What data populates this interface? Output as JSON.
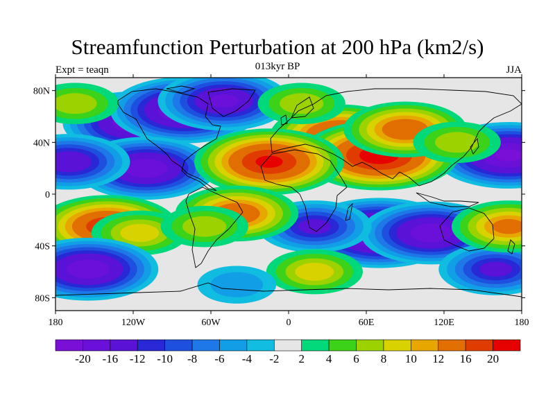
{
  "header": {
    "title": "Streamfunction Perturbation at 200 hPa (km2/s)",
    "subtitle": "013kyr BP",
    "left_string": "Expt = teaqn",
    "right_string": "JJA"
  },
  "map": {
    "projection": "cylindrical-equidistant",
    "lon_range": [
      -180,
      180
    ],
    "lat_range": [
      -90,
      90
    ],
    "x_ticks": [
      {
        "lon": -180,
        "label": "180"
      },
      {
        "lon": -120,
        "label": "120W"
      },
      {
        "lon": -60,
        "label": "60W"
      },
      {
        "lon": 0,
        "label": "0"
      },
      {
        "lon": 60,
        "label": "60E"
      },
      {
        "lon": 120,
        "label": "120E"
      },
      {
        "lon": 180,
        "label": "180"
      }
    ],
    "y_ticks": [
      {
        "lat": 80,
        "label": "80N"
      },
      {
        "lat": 40,
        "label": "40N"
      },
      {
        "lat": 0,
        "label": "0"
      },
      {
        "lat": -40,
        "label": "40S"
      },
      {
        "lat": -80,
        "label": "80S"
      }
    ],
    "background_color": "#e6e6e6",
    "anomalies": [
      {
        "lon": -120,
        "lat": 55,
        "value": -18
      },
      {
        "lon": -80,
        "lat": 65,
        "value": -20
      },
      {
        "lon": -50,
        "lat": 72,
        "value": -16
      },
      {
        "lon": -110,
        "lat": 20,
        "value": -18
      },
      {
        "lon": -170,
        "lat": 25,
        "value": -14
      },
      {
        "lon": -165,
        "lat": 70,
        "value": 6
      },
      {
        "lon": 170,
        "lat": 30,
        "value": -20
      },
      {
        "lon": 40,
        "lat": 45,
        "value": 18
      },
      {
        "lon": 70,
        "lat": 30,
        "value": 22
      },
      {
        "lon": 90,
        "lat": 50,
        "value": 14
      },
      {
        "lon": -15,
        "lat": 25,
        "value": 20
      },
      {
        "lon": 10,
        "lat": 70,
        "value": 6
      },
      {
        "lon": 130,
        "lat": 40,
        "value": 6
      },
      {
        "lon": 70,
        "lat": -30,
        "value": -22
      },
      {
        "lon": 110,
        "lat": -30,
        "value": -18
      },
      {
        "lon": 20,
        "lat": -25,
        "value": -12
      },
      {
        "lon": -140,
        "lat": -25,
        "value": 18
      },
      {
        "lon": -115,
        "lat": -30,
        "value": 8
      },
      {
        "lon": -40,
        "lat": -15,
        "value": 14
      },
      {
        "lon": -65,
        "lat": -25,
        "value": 6
      },
      {
        "lon": -155,
        "lat": -58,
        "value": -18
      },
      {
        "lon": 160,
        "lat": -58,
        "value": -12
      },
      {
        "lon": 170,
        "lat": -25,
        "value": 12
      },
      {
        "lon": 20,
        "lat": -60,
        "value": 8
      },
      {
        "lon": -40,
        "lat": -70,
        "value": -4
      }
    ]
  },
  "colorbar": {
    "colors": [
      "#7a10d8",
      "#6a10d8",
      "#5a12d6",
      "#2828d6",
      "#1e50e0",
      "#1e78e8",
      "#129ee6",
      "#10bce0",
      "#e6e6e6",
      "#00d87a",
      "#3cd21a",
      "#9cd200",
      "#d8d200",
      "#e8a600",
      "#e06e00",
      "#e03c00",
      "#e60000"
    ],
    "labels": [
      "-20",
      "-16",
      "-12",
      "-10",
      "-8",
      "-6",
      "-4",
      "-2",
      "2",
      "4",
      "6",
      "8",
      "10",
      "12",
      "16",
      "20"
    ],
    "boundaries": [
      -20,
      -16,
      -12,
      -10,
      -8,
      -6,
      -4,
      -2,
      2,
      4,
      6,
      8,
      10,
      12,
      16,
      20
    ]
  }
}
